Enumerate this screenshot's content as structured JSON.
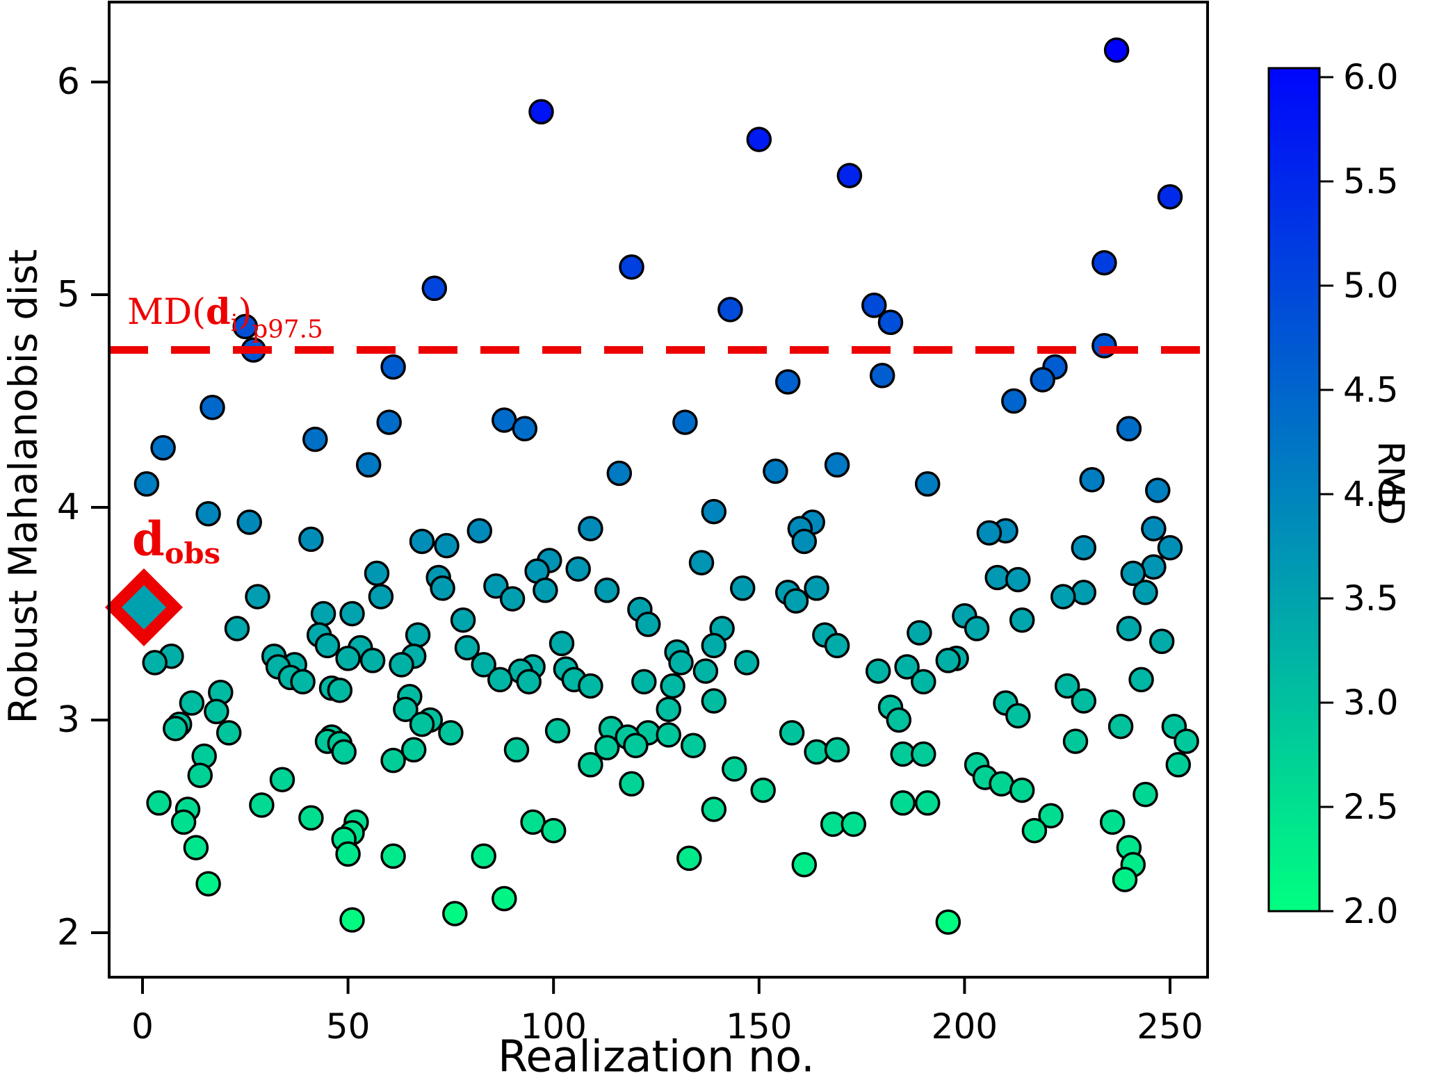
{
  "figure": {
    "background": "#ffffff",
    "axis_color": "#000000",
    "accent_red": "#ED0000"
  },
  "chart_data": {
    "type": "scatter",
    "xlabel": "Realization no.",
    "ylabel": "Robust Mahalanobis dist",
    "colorbar_label": "RMD",
    "xlim": [
      -8,
      259
    ],
    "ylim": [
      1.79,
      6.38
    ],
    "xticks": [
      0,
      50,
      100,
      150,
      200,
      250
    ],
    "yticks": [
      6,
      5,
      4,
      3,
      2
    ],
    "colorbar_ticks": [
      "6.0",
      "5.5",
      "5.0",
      "4.5",
      "4.0",
      "3.5",
      "3.0",
      "2.5",
      "2.0"
    ],
    "grid": false,
    "colormap": {
      "name": "winter_r",
      "vmin": 2.0,
      "vmax": 6.15,
      "low_color": "#00FF80",
      "high_color": "#0000FF"
    },
    "marker": {
      "shape": "circle",
      "edge_color": "#000000"
    },
    "threshold_line": {
      "value": 4.74,
      "style": "dashed",
      "color": "#ED0000",
      "label": "MD(d_i)_p97.5",
      "label_parts": {
        "prefix": "MD(",
        "bold_d": "d",
        "sub_i": "i",
        "close": ")",
        "sub_p": "p97.5"
      }
    },
    "d_obs": {
      "x": 0,
      "y": 3.53,
      "label_main": "d",
      "label_sub": "obs",
      "marker": "diamond",
      "edge_color": "#ED0000"
    },
    "points": [
      [
        237,
        6.15
      ],
      [
        97,
        5.86
      ],
      [
        150,
        5.73
      ],
      [
        172,
        5.56
      ],
      [
        250,
        5.46
      ],
      [
        234,
        5.15
      ],
      [
        119,
        5.13
      ],
      [
        71,
        5.03
      ],
      [
        178,
        4.95
      ],
      [
        143,
        4.93
      ],
      [
        182,
        4.87
      ],
      [
        25,
        4.85
      ],
      [
        234,
        4.76
      ],
      [
        27,
        4.74
      ],
      [
        61,
        4.66
      ],
      [
        222,
        4.66
      ],
      [
        180,
        4.62
      ],
      [
        219,
        4.6
      ],
      [
        157,
        4.59
      ],
      [
        212,
        4.5
      ],
      [
        17,
        4.47
      ],
      [
        88,
        4.41
      ],
      [
        60,
        4.4
      ],
      [
        132,
        4.4
      ],
      [
        93,
        4.37
      ],
      [
        240,
        4.37
      ],
      [
        42,
        4.32
      ],
      [
        5,
        4.28
      ],
      [
        55,
        4.2
      ],
      [
        169,
        4.2
      ],
      [
        154,
        4.17
      ],
      [
        116,
        4.16
      ],
      [
        231,
        4.13
      ],
      [
        1,
        4.11
      ],
      [
        191,
        4.11
      ],
      [
        247,
        4.08
      ],
      [
        139,
        3.98
      ],
      [
        16,
        3.97
      ],
      [
        163,
        3.93
      ],
      [
        26,
        3.93
      ],
      [
        160,
        3.9
      ],
      [
        109,
        3.9
      ],
      [
        246,
        3.9
      ],
      [
        210,
        3.89
      ],
      [
        206,
        3.88
      ],
      [
        82,
        3.89
      ],
      [
        41,
        3.85
      ],
      [
        68,
        3.84
      ],
      [
        161,
        3.84
      ],
      [
        74,
        3.82
      ],
      [
        229,
        3.81
      ],
      [
        250,
        3.81
      ],
      [
        99,
        3.75
      ],
      [
        136,
        3.74
      ],
      [
        246,
        3.72
      ],
      [
        106,
        3.71
      ],
      [
        96,
        3.7
      ],
      [
        57,
        3.69
      ],
      [
        241,
        3.69
      ],
      [
        72,
        3.67
      ],
      [
        208,
        3.67
      ],
      [
        213,
        3.66
      ],
      [
        86,
        3.63
      ],
      [
        73,
        3.62
      ],
      [
        146,
        3.62
      ],
      [
        164,
        3.62
      ],
      [
        113,
        3.61
      ],
      [
        98,
        3.61
      ],
      [
        157,
        3.6
      ],
      [
        229,
        3.6
      ],
      [
        244,
        3.6
      ],
      [
        90,
        3.57
      ],
      [
        159,
        3.56
      ],
      [
        28,
        3.58
      ],
      [
        58,
        3.58
      ],
      [
        224,
        3.58
      ],
      [
        121,
        3.52
      ],
      [
        44,
        3.5
      ],
      [
        51,
        3.5
      ],
      [
        200,
        3.49
      ],
      [
        78,
        3.47
      ],
      [
        214,
        3.47
      ],
      [
        123,
        3.45
      ],
      [
        23,
        3.43
      ],
      [
        203,
        3.43
      ],
      [
        141,
        3.43
      ],
      [
        240,
        3.43
      ],
      [
        189,
        3.41
      ],
      [
        43,
        3.4
      ],
      [
        67,
        3.4
      ],
      [
        166,
        3.4
      ],
      [
        45,
        3.35
      ],
      [
        139,
        3.35
      ],
      [
        169,
        3.35
      ],
      [
        53,
        3.34
      ],
      [
        79,
        3.34
      ],
      [
        130,
        3.32
      ],
      [
        7,
        3.3
      ],
      [
        32,
        3.3
      ],
      [
        66,
        3.3
      ],
      [
        50,
        3.29
      ],
      [
        198,
        3.29
      ],
      [
        56,
        3.28
      ],
      [
        196,
        3.28
      ],
      [
        3,
        3.27
      ],
      [
        147,
        3.27
      ],
      [
        131,
        3.27
      ],
      [
        37,
        3.26
      ],
      [
        63,
        3.26
      ],
      [
        83,
        3.26
      ],
      [
        95,
        3.25
      ],
      [
        33,
        3.25
      ],
      [
        186,
        3.25
      ],
      [
        248,
        3.37
      ],
      [
        102,
        3.36
      ],
      [
        179,
        3.23
      ],
      [
        137,
        3.23
      ],
      [
        92,
        3.23
      ],
      [
        103,
        3.24
      ],
      [
        36,
        3.2
      ],
      [
        87,
        3.19
      ],
      [
        243,
        3.19
      ],
      [
        105,
        3.19
      ],
      [
        39,
        3.18
      ],
      [
        190,
        3.18
      ],
      [
        122,
        3.18
      ],
      [
        94,
        3.18
      ],
      [
        129,
        3.16
      ],
      [
        225,
        3.16
      ],
      [
        109,
        3.16
      ],
      [
        46,
        3.15
      ],
      [
        48,
        3.14
      ],
      [
        19,
        3.13
      ],
      [
        65,
        3.11
      ],
      [
        12,
        3.08
      ],
      [
        210,
        3.08
      ],
      [
        139,
        3.09
      ],
      [
        229,
        3.09
      ],
      [
        182,
        3.06
      ],
      [
        64,
        3.05
      ],
      [
        128,
        3.05
      ],
      [
        18,
        3.04
      ],
      [
        213,
        3.02
      ],
      [
        184,
        3.0
      ],
      [
        70,
        3.0
      ],
      [
        9,
        2.98
      ],
      [
        68,
        2.98
      ],
      [
        238,
        2.97
      ],
      [
        251,
        2.97
      ],
      [
        8,
        2.96
      ],
      [
        114,
        2.96
      ],
      [
        101,
        2.95
      ],
      [
        21,
        2.94
      ],
      [
        123,
        2.94
      ],
      [
        158,
        2.94
      ],
      [
        75,
        2.94
      ],
      [
        128,
        2.93
      ],
      [
        46,
        2.92
      ],
      [
        118,
        2.92
      ],
      [
        91,
        2.86
      ],
      [
        45,
        2.9
      ],
      [
        254,
        2.9
      ],
      [
        227,
        2.9
      ],
      [
        48,
        2.89
      ],
      [
        134,
        2.88
      ],
      [
        120,
        2.88
      ],
      [
        113,
        2.87
      ],
      [
        66,
        2.86
      ],
      [
        164,
        2.85
      ],
      [
        169,
        2.86
      ],
      [
        49,
        2.85
      ],
      [
        185,
        2.84
      ],
      [
        190,
        2.84
      ],
      [
        15,
        2.83
      ],
      [
        61,
        2.81
      ],
      [
        203,
        2.79
      ],
      [
        252,
        2.79
      ],
      [
        109,
        2.79
      ],
      [
        144,
        2.77
      ],
      [
        14,
        2.74
      ],
      [
        205,
        2.73
      ],
      [
        34,
        2.72
      ],
      [
        209,
        2.7
      ],
      [
        119,
        2.7
      ],
      [
        214,
        2.67
      ],
      [
        151,
        2.67
      ],
      [
        244,
        2.65
      ],
      [
        4,
        2.61
      ],
      [
        29,
        2.6
      ],
      [
        185,
        2.61
      ],
      [
        191,
        2.61
      ],
      [
        11,
        2.58
      ],
      [
        139,
        2.58
      ],
      [
        221,
        2.55
      ],
      [
        41,
        2.54
      ],
      [
        52,
        2.52
      ],
      [
        10,
        2.52
      ],
      [
        95,
        2.52
      ],
      [
        236,
        2.52
      ],
      [
        168,
        2.51
      ],
      [
        173,
        2.51
      ],
      [
        100,
        2.48
      ],
      [
        217,
        2.48
      ],
      [
        51,
        2.47
      ],
      [
        49,
        2.44
      ],
      [
        13,
        2.4
      ],
      [
        240,
        2.4
      ],
      [
        50,
        2.37
      ],
      [
        61,
        2.36
      ],
      [
        83,
        2.36
      ],
      [
        133,
        2.35
      ],
      [
        241,
        2.32
      ],
      [
        161,
        2.32
      ],
      [
        239,
        2.25
      ],
      [
        16,
        2.23
      ],
      [
        88,
        2.16
      ],
      [
        76,
        2.09
      ],
      [
        51,
        2.06
      ],
      [
        196,
        2.05
      ]
    ]
  }
}
